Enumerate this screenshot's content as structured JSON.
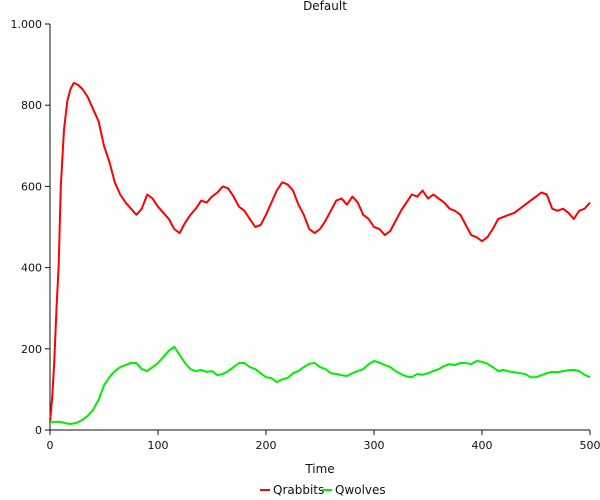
{
  "chart_data": {
    "type": "line",
    "title": "Default",
    "xlabel": "Time",
    "ylabel": "",
    "xlim": [
      0,
      500
    ],
    "ylim": [
      0,
      1000
    ],
    "x_ticks": [
      0,
      100,
      200,
      300,
      400,
      500
    ],
    "x_tick_labels": [
      "0",
      "100",
      "200",
      "300",
      "400",
      "500"
    ],
    "y_ticks": [
      0,
      200,
      400,
      600,
      800,
      1000
    ],
    "y_tick_labels": [
      "0",
      "200",
      "400",
      "600",
      "800",
      "1.000"
    ],
    "grid": false,
    "legend_position": "bottom",
    "series": [
      {
        "name": "Qrabbits",
        "color": "#ff0000",
        "points": [
          [
            0,
            20
          ],
          [
            2,
            80
          ],
          [
            4,
            170
          ],
          [
            6,
            300
          ],
          [
            8,
            400
          ],
          [
            10,
            600
          ],
          [
            13,
            740
          ],
          [
            16,
            810
          ],
          [
            19,
            840
          ],
          [
            22,
            855
          ],
          [
            26,
            850
          ],
          [
            30,
            840
          ],
          [
            35,
            820
          ],
          [
            40,
            790
          ],
          [
            45,
            760
          ],
          [
            50,
            700
          ],
          [
            55,
            660
          ],
          [
            60,
            610
          ],
          [
            65,
            580
          ],
          [
            70,
            560
          ],
          [
            75,
            545
          ],
          [
            80,
            530
          ],
          [
            85,
            545
          ],
          [
            90,
            580
          ],
          [
            95,
            570
          ],
          [
            100,
            550
          ],
          [
            105,
            535
          ],
          [
            110,
            520
          ],
          [
            115,
            495
          ],
          [
            120,
            485
          ],
          [
            125,
            510
          ],
          [
            130,
            530
          ],
          [
            135,
            545
          ],
          [
            140,
            565
          ],
          [
            145,
            560
          ],
          [
            150,
            575
          ],
          [
            155,
            585
          ],
          [
            160,
            600
          ],
          [
            165,
            595
          ],
          [
            170,
            575
          ],
          [
            175,
            550
          ],
          [
            180,
            540
          ],
          [
            185,
            520
          ],
          [
            190,
            500
          ],
          [
            195,
            505
          ],
          [
            200,
            530
          ],
          [
            205,
            560
          ],
          [
            210,
            590
          ],
          [
            215,
            610
          ],
          [
            220,
            605
          ],
          [
            225,
            590
          ],
          [
            230,
            555
          ],
          [
            235,
            530
          ],
          [
            240,
            495
          ],
          [
            245,
            485
          ],
          [
            250,
            495
          ],
          [
            255,
            515
          ],
          [
            260,
            540
          ],
          [
            265,
            565
          ],
          [
            270,
            570
          ],
          [
            275,
            555
          ],
          [
            280,
            575
          ],
          [
            285,
            560
          ],
          [
            290,
            530
          ],
          [
            295,
            520
          ],
          [
            300,
            500
          ],
          [
            305,
            495
          ],
          [
            310,
            480
          ],
          [
            315,
            490
          ],
          [
            320,
            515
          ],
          [
            325,
            540
          ],
          [
            330,
            560
          ],
          [
            335,
            580
          ],
          [
            340,
            575
          ],
          [
            345,
            590
          ],
          [
            350,
            570
          ],
          [
            355,
            580
          ],
          [
            360,
            570
          ],
          [
            365,
            560
          ],
          [
            370,
            545
          ],
          [
            375,
            540
          ],
          [
            380,
            530
          ],
          [
            385,
            505
          ],
          [
            390,
            480
          ],
          [
            395,
            475
          ],
          [
            400,
            465
          ],
          [
            405,
            475
          ],
          [
            410,
            495
          ],
          [
            415,
            520
          ],
          [
            420,
            525
          ],
          [
            425,
            530
          ],
          [
            430,
            535
          ],
          [
            435,
            545
          ],
          [
            440,
            555
          ],
          [
            445,
            565
          ],
          [
            450,
            575
          ],
          [
            455,
            585
          ],
          [
            460,
            580
          ],
          [
            465,
            545
          ],
          [
            470,
            540
          ],
          [
            475,
            545
          ],
          [
            480,
            535
          ],
          [
            485,
            520
          ],
          [
            490,
            540
          ],
          [
            495,
            545
          ],
          [
            500,
            560
          ]
        ]
      },
      {
        "name": "Qwolves",
        "color": "#00ee00",
        "points": [
          [
            0,
            20
          ],
          [
            5,
            20
          ],
          [
            10,
            20
          ],
          [
            15,
            16
          ],
          [
            20,
            15
          ],
          [
            25,
            18
          ],
          [
            30,
            25
          ],
          [
            35,
            35
          ],
          [
            40,
            50
          ],
          [
            45,
            75
          ],
          [
            50,
            110
          ],
          [
            55,
            130
          ],
          [
            60,
            145
          ],
          [
            65,
            155
          ],
          [
            70,
            160
          ],
          [
            75,
            165
          ],
          [
            80,
            165
          ],
          [
            85,
            150
          ],
          [
            90,
            145
          ],
          [
            95,
            155
          ],
          [
            100,
            165
          ],
          [
            105,
            180
          ],
          [
            110,
            195
          ],
          [
            115,
            205
          ],
          [
            120,
            185
          ],
          [
            125,
            165
          ],
          [
            130,
            150
          ],
          [
            135,
            145
          ],
          [
            140,
            148
          ],
          [
            145,
            143
          ],
          [
            150,
            145
          ],
          [
            155,
            135
          ],
          [
            160,
            138
          ],
          [
            165,
            145
          ],
          [
            170,
            155
          ],
          [
            175,
            165
          ],
          [
            180,
            165
          ],
          [
            185,
            155
          ],
          [
            190,
            150
          ],
          [
            195,
            140
          ],
          [
            200,
            130
          ],
          [
            205,
            128
          ],
          [
            210,
            118
          ],
          [
            215,
            125
          ],
          [
            220,
            128
          ],
          [
            225,
            140
          ],
          [
            230,
            145
          ],
          [
            235,
            155
          ],
          [
            240,
            163
          ],
          [
            245,
            165
          ],
          [
            250,
            155
          ],
          [
            255,
            150
          ],
          [
            260,
            140
          ],
          [
            265,
            138
          ],
          [
            270,
            135
          ],
          [
            275,
            133
          ],
          [
            280,
            140
          ],
          [
            285,
            145
          ],
          [
            290,
            150
          ],
          [
            295,
            162
          ],
          [
            300,
            170
          ],
          [
            305,
            166
          ],
          [
            310,
            160
          ],
          [
            315,
            155
          ],
          [
            320,
            145
          ],
          [
            325,
            138
          ],
          [
            330,
            132
          ],
          [
            335,
            130
          ],
          [
            340,
            138
          ],
          [
            345,
            136
          ],
          [
            350,
            140
          ],
          [
            355,
            145
          ],
          [
            360,
            150
          ],
          [
            365,
            158
          ],
          [
            370,
            162
          ],
          [
            375,
            160
          ],
          [
            380,
            165
          ],
          [
            385,
            165
          ],
          [
            390,
            162
          ],
          [
            395,
            170
          ],
          [
            400,
            168
          ],
          [
            405,
            163
          ],
          [
            410,
            155
          ],
          [
            415,
            145
          ],
          [
            420,
            148
          ],
          [
            425,
            144
          ],
          [
            430,
            142
          ],
          [
            435,
            140
          ],
          [
            440,
            138
          ],
          [
            445,
            130
          ],
          [
            450,
            130
          ],
          [
            455,
            135
          ],
          [
            460,
            140
          ],
          [
            465,
            143
          ],
          [
            470,
            142
          ],
          [
            475,
            145
          ],
          [
            480,
            147
          ],
          [
            485,
            148
          ],
          [
            490,
            145
          ],
          [
            495,
            136
          ],
          [
            500,
            130
          ]
        ]
      }
    ]
  }
}
